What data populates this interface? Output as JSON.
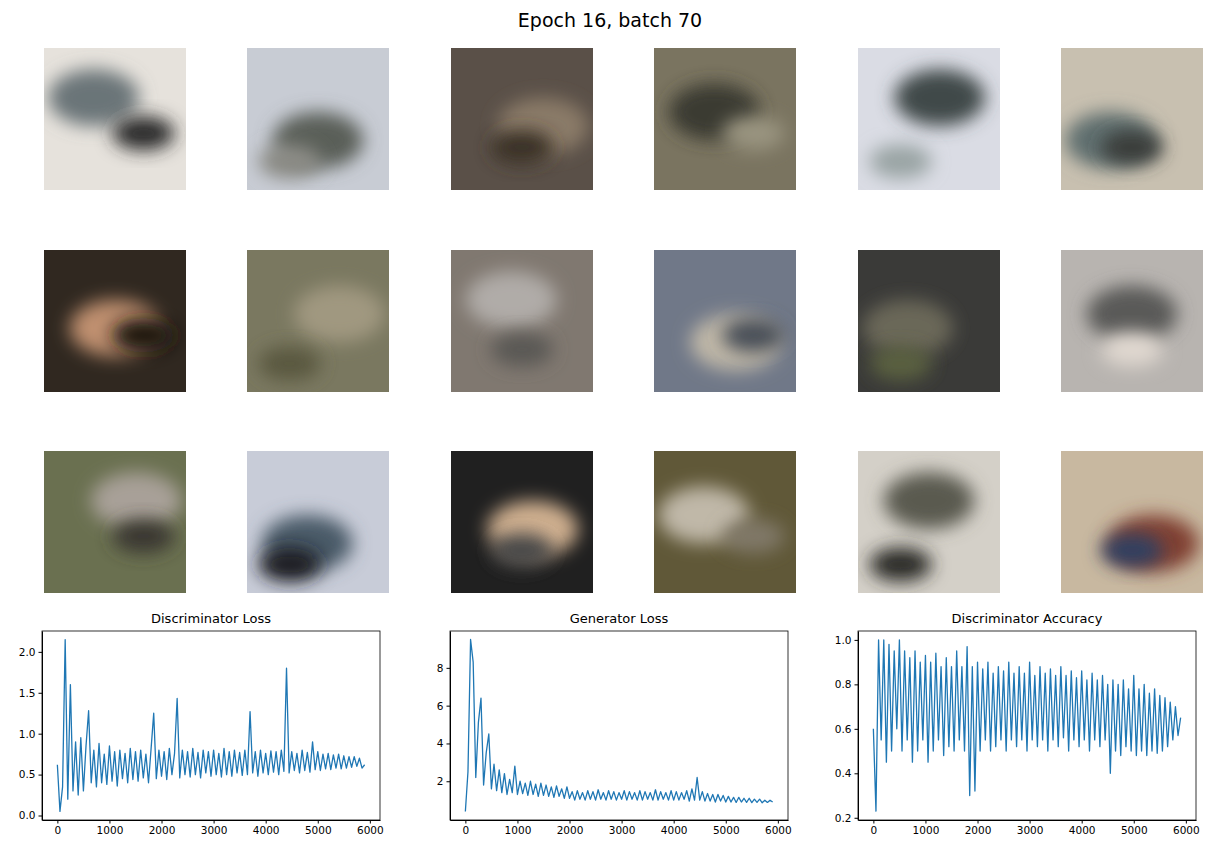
{
  "title": "Epoch 16, batch 70",
  "chart_data": [
    {
      "type": "line",
      "title": "Discriminator Loss",
      "color": "#1f77b4",
      "x": [
        0,
        50,
        100,
        150,
        200,
        250,
        300,
        350,
        400,
        450,
        500,
        550,
        600,
        650,
        700,
        750,
        800,
        850,
        900,
        950,
        1000,
        1050,
        1100,
        1150,
        1200,
        1250,
        1300,
        1350,
        1400,
        1450,
        1500,
        1550,
        1600,
        1650,
        1700,
        1750,
        1800,
        1850,
        1900,
        1950,
        2000,
        2050,
        2100,
        2150,
        2200,
        2250,
        2300,
        2350,
        2400,
        2450,
        2500,
        2550,
        2600,
        2650,
        2700,
        2750,
        2800,
        2850,
        2900,
        2950,
        3000,
        3050,
        3100,
        3150,
        3200,
        3250,
        3300,
        3350,
        3400,
        3450,
        3500,
        3550,
        3600,
        3650,
        3700,
        3750,
        3800,
        3850,
        3900,
        3950,
        4000,
        4050,
        4100,
        4150,
        4200,
        4250,
        4300,
        4350,
        4400,
        4450,
        4500,
        4550,
        4600,
        4650,
        4700,
        4750,
        4800,
        4850,
        4900,
        4950,
        5000,
        5050,
        5100,
        5150,
        5200,
        5250,
        5300,
        5350,
        5400,
        5450,
        5500,
        5550,
        5600,
        5650,
        5700,
        5750,
        5800,
        5850,
        5900
      ],
      "values": [
        0.62,
        0.05,
        0.35,
        2.15,
        0.2,
        1.6,
        0.3,
        0.9,
        0.25,
        0.95,
        0.3,
        0.85,
        1.28,
        0.4,
        0.8,
        0.35,
        0.88,
        0.4,
        0.75,
        0.38,
        0.85,
        0.42,
        0.78,
        0.36,
        0.8,
        0.45,
        0.76,
        0.4,
        0.82,
        0.44,
        0.78,
        0.42,
        0.8,
        0.46,
        0.75,
        0.4,
        0.82,
        1.25,
        0.45,
        0.8,
        0.48,
        0.78,
        0.44,
        0.82,
        0.5,
        0.76,
        1.43,
        0.46,
        0.8,
        0.5,
        0.78,
        0.47,
        0.82,
        0.5,
        0.77,
        0.46,
        0.8,
        0.52,
        0.78,
        0.48,
        0.8,
        0.5,
        0.76,
        0.47,
        0.82,
        0.5,
        0.78,
        0.48,
        0.8,
        0.52,
        0.77,
        0.49,
        0.8,
        0.5,
        1.27,
        0.52,
        0.78,
        0.48,
        0.8,
        0.52,
        0.76,
        0.5,
        0.79,
        0.53,
        0.78,
        0.5,
        0.8,
        0.54,
        1.8,
        0.52,
        0.78,
        0.55,
        0.76,
        0.52,
        0.8,
        0.55,
        0.77,
        0.53,
        0.9,
        0.56,
        0.78,
        0.55,
        0.75,
        0.57,
        0.76,
        0.56,
        0.74,
        0.58,
        0.75,
        0.57,
        0.73,
        0.58,
        0.72,
        0.59,
        0.72,
        0.6,
        0.7,
        0.58,
        0.62
      ],
      "xlim": [
        -295,
        6195
      ],
      "ylim": [
        -0.055,
        2.255
      ],
      "xticks": [
        0,
        1000,
        2000,
        3000,
        4000,
        5000,
        6000
      ],
      "yticks": [
        {
          "value": 0,
          "label": "0.0"
        },
        0.5,
        {
          "value": 1,
          "label": "1.0"
        },
        1.5,
        {
          "value": 2,
          "label": "2.0"
        }
      ]
    },
    {
      "type": "line",
      "title": "Generator Loss",
      "color": "#1f77b4",
      "x": [
        0,
        50,
        100,
        150,
        200,
        250,
        300,
        350,
        400,
        450,
        500,
        550,
        600,
        650,
        700,
        750,
        800,
        850,
        900,
        950,
        1000,
        1050,
        1100,
        1150,
        1200,
        1250,
        1300,
        1350,
        1400,
        1450,
        1500,
        1550,
        1600,
        1650,
        1700,
        1750,
        1800,
        1850,
        1900,
        1950,
        2000,
        2050,
        2100,
        2150,
        2200,
        2250,
        2300,
        2350,
        2400,
        2450,
        2500,
        2550,
        2600,
        2650,
        2700,
        2750,
        2800,
        2850,
        2900,
        2950,
        3000,
        3050,
        3100,
        3150,
        3200,
        3250,
        3300,
        3350,
        3400,
        3450,
        3500,
        3550,
        3600,
        3650,
        3700,
        3750,
        3800,
        3850,
        3900,
        3950,
        4000,
        4050,
        4100,
        4150,
        4200,
        4250,
        4300,
        4350,
        4400,
        4450,
        4500,
        4550,
        4600,
        4650,
        4700,
        4750,
        4800,
        4850,
        4900,
        4950,
        5000,
        5050,
        5100,
        5150,
        5200,
        5250,
        5300,
        5350,
        5400,
        5450,
        5500,
        5550,
        5600,
        5650,
        5700,
        5750,
        5800,
        5850,
        5900
      ],
      "values": [
        0.4,
        2.5,
        9.5,
        8.3,
        2.2,
        5.1,
        6.4,
        1.8,
        3.5,
        4.5,
        1.6,
        2.9,
        1.5,
        2.6,
        1.4,
        2.4,
        1.3,
        2.1,
        1.4,
        2.8,
        1.3,
        2.0,
        1.35,
        1.9,
        1.25,
        2.0,
        1.3,
        1.85,
        1.2,
        1.9,
        1.25,
        1.8,
        1.2,
        1.7,
        1.15,
        1.75,
        1.2,
        1.6,
        1.1,
        1.7,
        1.1,
        1.45,
        1.0,
        1.5,
        1.05,
        1.4,
        1.0,
        1.5,
        1.05,
        1.45,
        1.0,
        1.55,
        1.05,
        1.4,
        1.0,
        1.5,
        1.05,
        1.45,
        1.0,
        1.4,
        1.05,
        1.5,
        1.0,
        1.45,
        1.05,
        1.4,
        1.0,
        1.5,
        1.0,
        1.45,
        1.05,
        1.4,
        1.0,
        1.55,
        1.0,
        1.45,
        1.05,
        1.4,
        1.0,
        1.5,
        1.0,
        1.45,
        1.0,
        1.4,
        1.05,
        1.5,
        0.95,
        1.6,
        1.0,
        2.2,
        1.0,
        1.45,
        0.95,
        1.35,
        0.95,
        1.3,
        0.9,
        1.3,
        0.95,
        1.25,
        0.9,
        1.2,
        0.9,
        1.15,
        0.88,
        1.15,
        0.9,
        1.1,
        0.88,
        1.1,
        0.87,
        1.05,
        0.88,
        1.05,
        0.86,
        1.0,
        0.88,
        1.0,
        0.9
      ],
      "xlim": [
        -295,
        6195
      ],
      "ylim": [
        -0.05,
        9.95
      ],
      "xticks": [
        0,
        1000,
        2000,
        3000,
        4000,
        5000,
        6000
      ],
      "yticks": [
        2,
        4,
        6,
        8
      ]
    },
    {
      "type": "line",
      "title": "Discriminator Accuracy",
      "color": "#1f77b4",
      "x": [
        0,
        50,
        100,
        150,
        200,
        250,
        300,
        350,
        400,
        450,
        500,
        550,
        600,
        650,
        700,
        750,
        800,
        850,
        900,
        950,
        1000,
        1050,
        1100,
        1150,
        1200,
        1250,
        1300,
        1350,
        1400,
        1450,
        1500,
        1550,
        1600,
        1650,
        1700,
        1750,
        1800,
        1850,
        1900,
        1950,
        2000,
        2050,
        2100,
        2150,
        2200,
        2250,
        2300,
        2350,
        2400,
        2450,
        2500,
        2550,
        2600,
        2650,
        2700,
        2750,
        2800,
        2850,
        2900,
        2950,
        3000,
        3050,
        3100,
        3150,
        3200,
        3250,
        3300,
        3350,
        3400,
        3450,
        3500,
        3550,
        3600,
        3650,
        3700,
        3750,
        3800,
        3850,
        3900,
        3950,
        4000,
        4050,
        4100,
        4150,
        4200,
        4250,
        4300,
        4350,
        4400,
        4450,
        4500,
        4550,
        4600,
        4650,
        4700,
        4750,
        4800,
        4850,
        4900,
        4950,
        5000,
        5050,
        5100,
        5150,
        5200,
        5250,
        5300,
        5350,
        5400,
        5450,
        5500,
        5550,
        5600,
        5650,
        5700,
        5750,
        5800,
        5850,
        5900
      ],
      "values": [
        0.6,
        0.23,
        1.0,
        0.55,
        1.0,
        0.45,
        0.98,
        0.5,
        0.95,
        0.6,
        1.0,
        0.5,
        0.95,
        0.55,
        0.92,
        0.45,
        0.95,
        0.5,
        0.9,
        0.55,
        0.93,
        0.45,
        0.9,
        0.5,
        0.94,
        0.55,
        0.88,
        0.48,
        0.92,
        0.52,
        0.88,
        0.5,
        0.95,
        0.55,
        0.88,
        0.5,
        0.97,
        0.3,
        0.88,
        0.32,
        0.9,
        0.5,
        0.87,
        0.55,
        0.9,
        0.5,
        0.85,
        0.52,
        0.88,
        0.55,
        0.86,
        0.5,
        0.9,
        0.55,
        0.85,
        0.52,
        0.88,
        0.55,
        0.85,
        0.5,
        0.9,
        0.55,
        0.84,
        0.52,
        0.88,
        0.55,
        0.85,
        0.5,
        0.87,
        0.55,
        0.84,
        0.52,
        0.88,
        0.56,
        0.84,
        0.5,
        0.86,
        0.55,
        0.83,
        0.52,
        0.86,
        0.55,
        0.82,
        0.5,
        0.85,
        0.55,
        0.82,
        0.52,
        0.84,
        0.55,
        0.8,
        0.4,
        0.82,
        0.5,
        0.8,
        0.48,
        0.82,
        0.52,
        0.78,
        0.5,
        0.84,
        0.48,
        0.78,
        0.5,
        0.8,
        0.48,
        0.76,
        0.5,
        0.78,
        0.49,
        0.75,
        0.5,
        0.74,
        0.52,
        0.72,
        0.55,
        0.7,
        0.57,
        0.65
      ],
      "xlim": [
        -295,
        6195
      ],
      "ylim": [
        0.19,
        1.04
      ],
      "xticks": [
        0,
        1000,
        2000,
        3000,
        4000,
        5000,
        6000
      ],
      "yticks": [
        0.2,
        0.4,
        0.6,
        0.8,
        {
          "value": 1,
          "label": "1.0"
        }
      ]
    }
  ]
}
